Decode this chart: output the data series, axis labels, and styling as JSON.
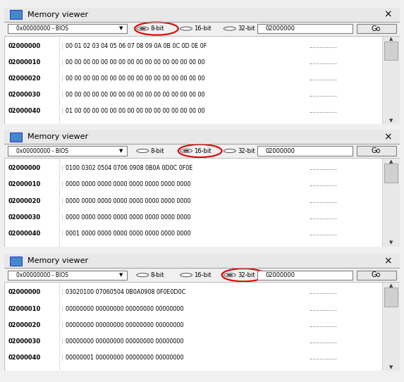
{
  "title": "Memory viewer",
  "bg_color": "#f0f0f0",
  "panel_bg": "#ffffff",
  "border_color": "#a0a0a0",
  "panels": [
    {
      "selected_bit": "8-bit",
      "bit_circle_idx": 0,
      "address_box": "02000000",
      "dropdown": "0x00000000 - BIOS",
      "rows": [
        [
          "02000000",
          "00 01 02 03 04 05 06 07 08 09 0A 0B 0C 0D 0E 0F",
          "................"
        ],
        [
          "02000010",
          "00 00 00 00 00 00 00 00 00 00 00 00 00 00 00 00",
          "................"
        ],
        [
          "02000020",
          "00 00 00 00 00 00 00 00 00 00 00 00 00 00 00 00",
          "................"
        ],
        [
          "02000030",
          "00 00 00 00 00 00 00 00 00 00 00 00 00 00 00 00",
          "................"
        ],
        [
          "02000040",
          "01 00 00 00 00 00 00 00 00 00 00 00 00 00 00 00",
          "................"
        ]
      ]
    },
    {
      "selected_bit": "16-bit",
      "bit_circle_idx": 1,
      "address_box": "02000000",
      "dropdown": "0x00000000 - BIOS",
      "rows": [
        [
          "02000000",
          "0100 0302 0504 0706 0908 0B0A 0D0C 0F0E",
          "................"
        ],
        [
          "02000010",
          "0000 0000 0000 0000 0000 0000 0000 0000",
          "................"
        ],
        [
          "02000020",
          "0000 0000 0000 0000 0000 0000 0000 0000",
          "................"
        ],
        [
          "02000030",
          "0000 0000 0000 0000 0000 0000 0000 0000",
          "................"
        ],
        [
          "02000040",
          "0001 0000 0000 0000 0000 0000 0000 0000",
          "................"
        ]
      ]
    },
    {
      "selected_bit": "32-bit",
      "bit_circle_idx": 2,
      "address_box": "02000000",
      "dropdown": "0x00000000 - BIOS",
      "rows": [
        [
          "02000000",
          "03020100 07060504 0B0A0908 0F0E0D0C",
          "................"
        ],
        [
          "02000010",
          "00000000 00000000 00000000 00000000",
          "................"
        ],
        [
          "02000020",
          "00000000 00000000 00000000 00000000",
          "................"
        ],
        [
          "02000030",
          "00000000 00000000 00000000 00000000",
          "................"
        ],
        [
          "02000040",
          "00000001 00000000 00000000 00000000",
          "................"
        ]
      ]
    }
  ],
  "radio_labels": [
    "8-bit",
    "16-bit",
    "32-bit"
  ],
  "circle_color": "#ff0000",
  "monospace_font": "Courier New",
  "title_font": "Arial"
}
